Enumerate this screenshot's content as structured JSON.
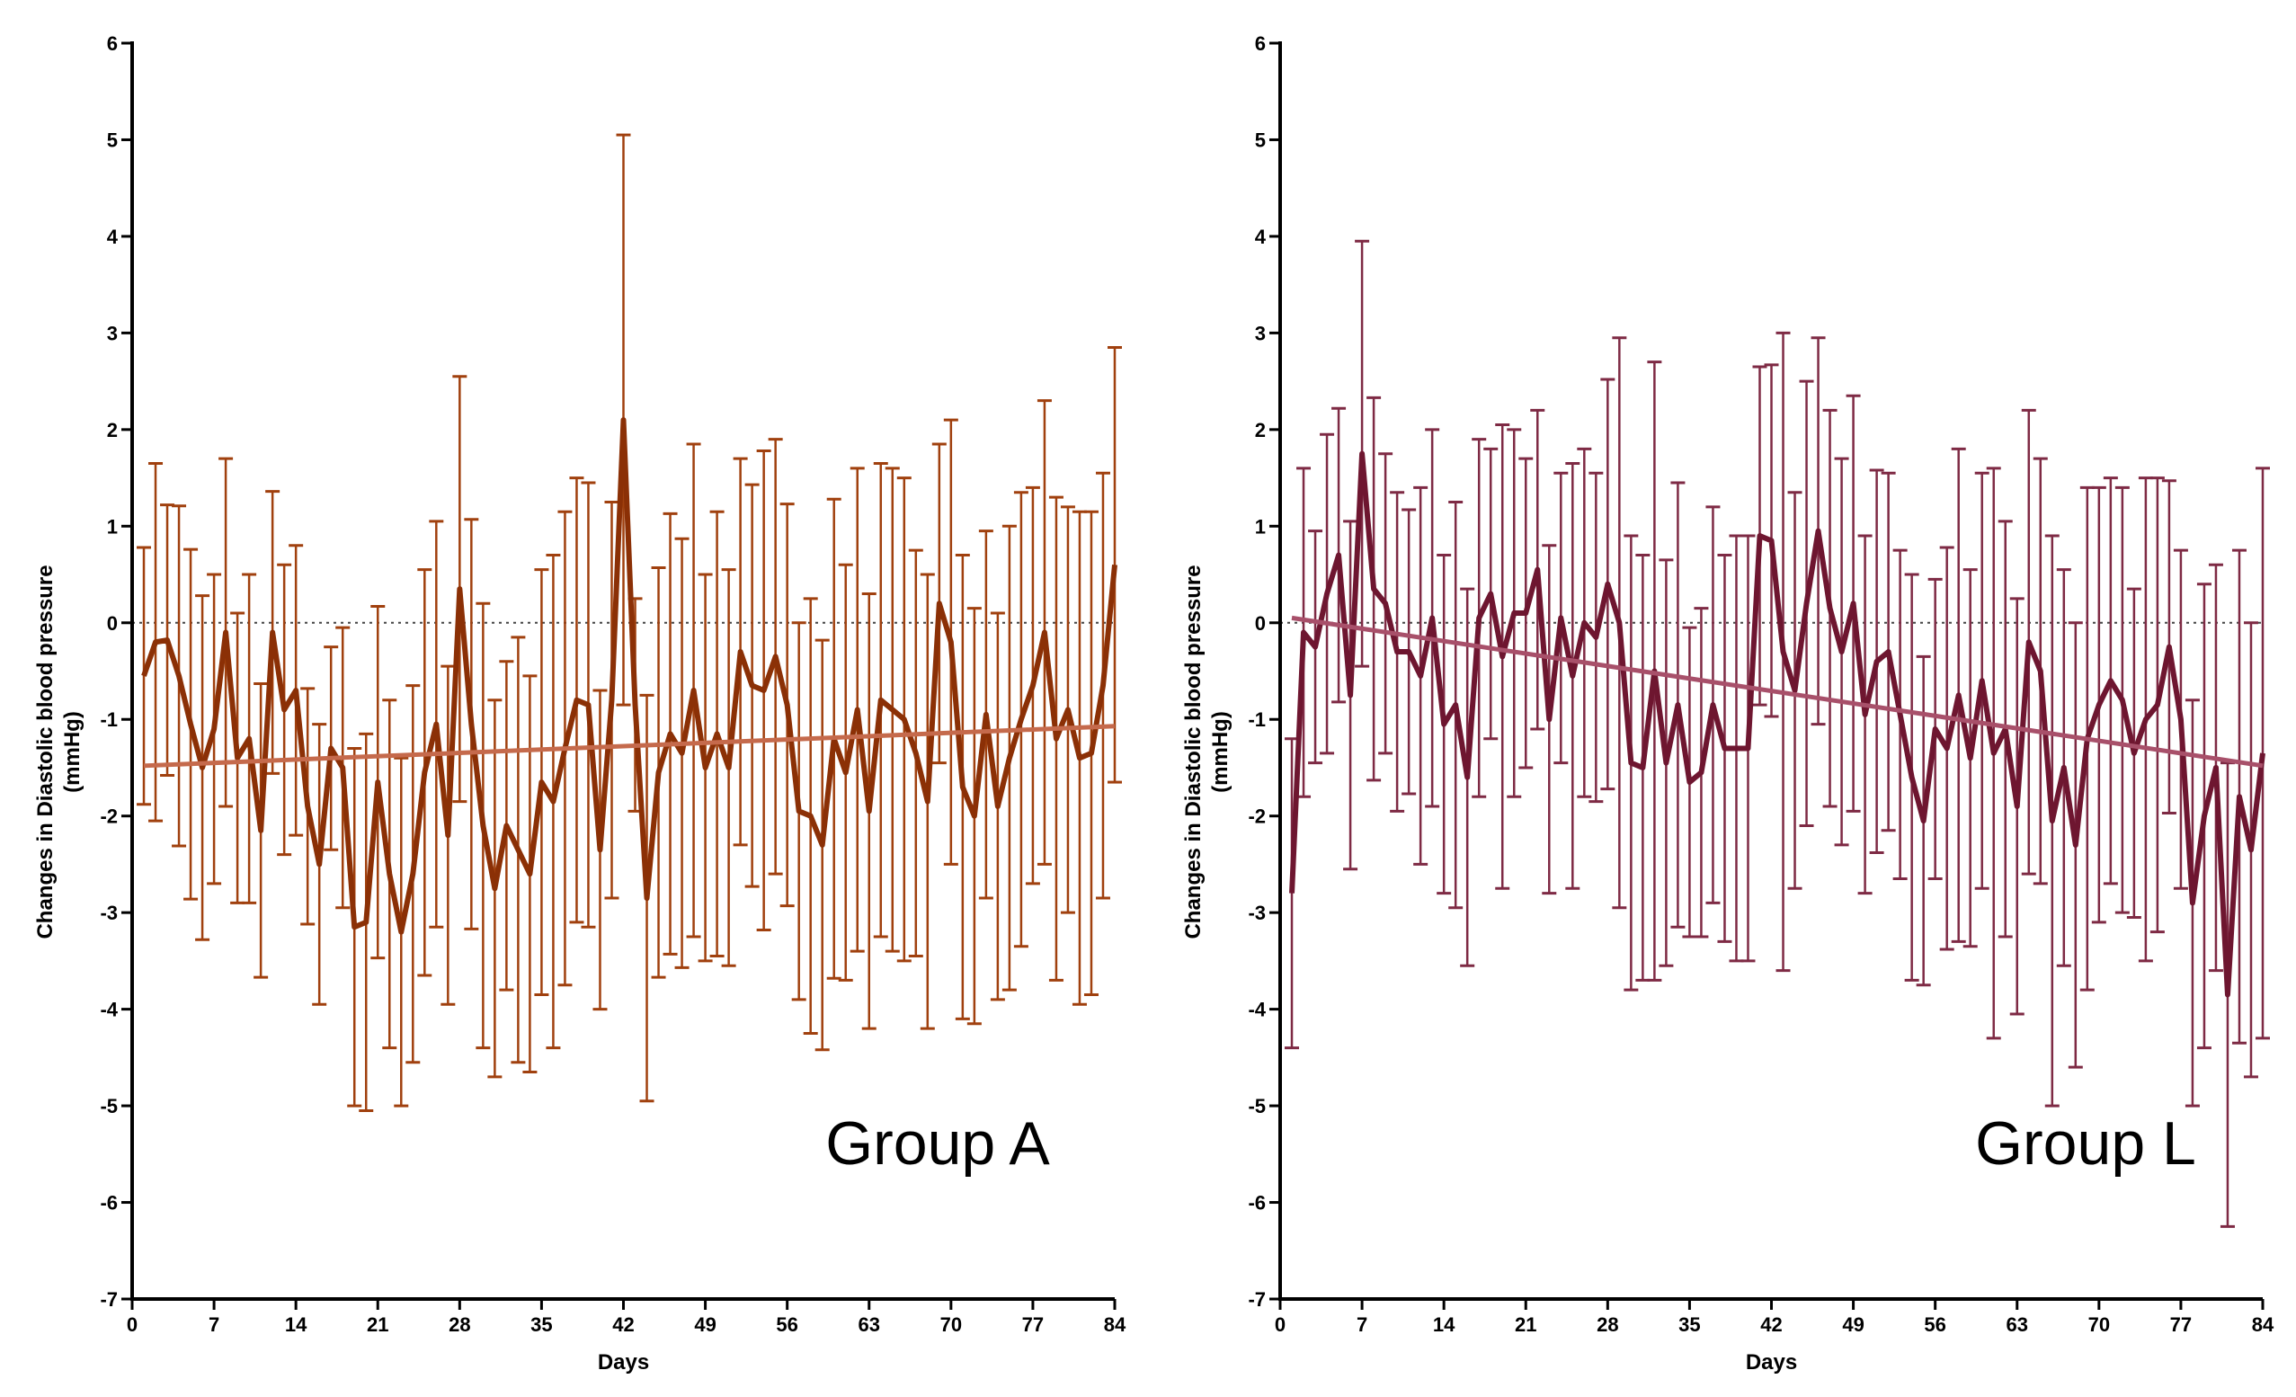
{
  "chart_data": [
    {
      "type": "line",
      "title": "",
      "group_label": "Group A",
      "xlabel": "Days",
      "ylabel_line1": "Changes in Diastolic blood pressure",
      "ylabel_line2": "(mmHg)",
      "xlim": [
        0,
        84
      ],
      "ylim": [
        -7,
        6
      ],
      "x_ticks": [
        0,
        7,
        14,
        21,
        28,
        35,
        42,
        49,
        56,
        63,
        70,
        77,
        84
      ],
      "y_ticks": [
        -7,
        -6,
        -5,
        -4,
        -3,
        -2,
        -1,
        0,
        1,
        2,
        3,
        4,
        5,
        6
      ],
      "colors": {
        "series": "#8B3006",
        "error_bars": "#A0400E",
        "trend": "#C56A4C"
      },
      "reference_line": 0,
      "trend": {
        "start": [
          1,
          -1.48
        ],
        "end": [
          84,
          -1.07
        ]
      },
      "series": [
        {
          "name": "Group A",
          "x": [
            1,
            2,
            3,
            4,
            5,
            6,
            7,
            8,
            9,
            10,
            11,
            12,
            13,
            14,
            15,
            16,
            17,
            18,
            19,
            20,
            21,
            22,
            23,
            24,
            25,
            26,
            27,
            28,
            29,
            30,
            31,
            32,
            33,
            34,
            35,
            36,
            37,
            38,
            39,
            40,
            41,
            42,
            43,
            44,
            45,
            46,
            47,
            48,
            49,
            50,
            51,
            52,
            53,
            54,
            55,
            56,
            57,
            58,
            59,
            60,
            61,
            62,
            63,
            64,
            65,
            66,
            67,
            68,
            69,
            70,
            71,
            72,
            73,
            74,
            75,
            76,
            77,
            78,
            79,
            80,
            81,
            82,
            83,
            84
          ],
          "values": [
            -0.55,
            -0.2,
            -0.18,
            -0.55,
            -1.05,
            -1.5,
            -1.1,
            -0.1,
            -1.4,
            -1.2,
            -2.15,
            -0.1,
            -0.9,
            -0.7,
            -1.9,
            -2.5,
            -1.3,
            -1.5,
            -3.15,
            -3.1,
            -1.65,
            -2.6,
            -3.2,
            -2.6,
            -1.55,
            -1.05,
            -2.2,
            0.35,
            -1.05,
            -2.1,
            -2.75,
            -2.1,
            -2.35,
            -2.6,
            -1.65,
            -1.85,
            -1.3,
            -0.8,
            -0.85,
            -2.35,
            -0.8,
            2.1,
            -0.85,
            -2.85,
            -1.55,
            -1.15,
            -1.35,
            -0.7,
            -1.5,
            -1.15,
            -1.5,
            -0.3,
            -0.65,
            -0.7,
            -0.35,
            -0.85,
            -1.95,
            -2.0,
            -2.3,
            -1.2,
            -1.55,
            -0.9,
            -1.95,
            -0.8,
            -0.9,
            -1.0,
            -1.35,
            -1.85,
            0.2,
            -0.2,
            -1.7,
            -2.0,
            -0.95,
            -1.9,
            -1.4,
            -1.0,
            -0.65,
            -0.1,
            -1.2,
            -0.9,
            -1.4,
            -1.35,
            -0.65,
            0.6
          ],
          "error": [
            1.33,
            1.85,
            1.4,
            1.76,
            1.81,
            1.78,
            1.6,
            1.8,
            1.5,
            1.7,
            1.52,
            1.46,
            1.5,
            1.5,
            1.22,
            1.45,
            1.05,
            1.45,
            1.85,
            1.95,
            1.82,
            1.8,
            1.8,
            1.95,
            2.1,
            2.1,
            1.75,
            2.2,
            2.12,
            2.3,
            1.95,
            1.7,
            2.2,
            2.05,
            2.2,
            2.55,
            2.45,
            2.3,
            2.3,
            1.65,
            2.05,
            2.95,
            1.1,
            2.1,
            2.12,
            2.28,
            2.22,
            2.55,
            2.0,
            2.3,
            2.05,
            2.0,
            2.08,
            2.48,
            2.25,
            2.08,
            1.95,
            2.25,
            2.12,
            2.48,
            2.15,
            2.5,
            2.25,
            2.45,
            2.5,
            2.5,
            2.1,
            2.35,
            1.65,
            2.3,
            2.4,
            2.15,
            1.9,
            2.0,
            2.4,
            2.35,
            2.05,
            2.4,
            2.5,
            2.1,
            2.55,
            2.5,
            2.2,
            2.25
          ]
        }
      ]
    },
    {
      "type": "line",
      "title": "",
      "group_label": "Group L",
      "xlabel": "Days",
      "ylabel_line1": "Changes in Diastolic blood pressure",
      "ylabel_line2": "(mmHg)",
      "xlim": [
        0,
        84
      ],
      "ylim": [
        -7,
        6
      ],
      "x_ticks": [
        0,
        7,
        14,
        21,
        28,
        35,
        42,
        49,
        56,
        63,
        70,
        77,
        84
      ],
      "y_ticks": [
        -7,
        -6,
        -5,
        -4,
        -3,
        -2,
        -1,
        0,
        1,
        2,
        3,
        4,
        5,
        6
      ],
      "colors": {
        "series": "#6E1630",
        "error_bars": "#7E2A44",
        "trend": "#A8506A"
      },
      "reference_line": 0,
      "trend": {
        "start": [
          1,
          0.05
        ],
        "end": [
          84,
          -1.48
        ]
      },
      "series": [
        {
          "name": "Group L",
          "x": [
            1,
            2,
            3,
            4,
            5,
            6,
            7,
            8,
            9,
            10,
            11,
            12,
            13,
            14,
            15,
            16,
            17,
            18,
            19,
            20,
            21,
            22,
            23,
            24,
            25,
            26,
            27,
            28,
            29,
            30,
            31,
            32,
            33,
            34,
            35,
            36,
            37,
            38,
            39,
            40,
            41,
            42,
            43,
            44,
            45,
            46,
            47,
            48,
            49,
            50,
            51,
            52,
            53,
            54,
            55,
            56,
            57,
            58,
            59,
            60,
            61,
            62,
            63,
            64,
            65,
            66,
            67,
            68,
            69,
            70,
            71,
            72,
            73,
            74,
            75,
            76,
            77,
            78,
            79,
            80,
            81,
            82,
            83,
            84
          ],
          "values": [
            -2.8,
            -0.1,
            -0.25,
            0.3,
            0.7,
            -0.75,
            1.75,
            0.35,
            0.2,
            -0.3,
            -0.3,
            -0.55,
            0.05,
            -1.05,
            -0.85,
            -1.6,
            0.05,
            0.3,
            -0.35,
            0.1,
            0.1,
            0.55,
            -1.0,
            0.05,
            -0.55,
            0.0,
            -0.15,
            0.4,
            0.0,
            -1.45,
            -1.5,
            -0.5,
            -1.45,
            -0.85,
            -1.65,
            -1.55,
            -0.85,
            -1.3,
            -1.3,
            -1.3,
            0.9,
            0.85,
            -0.3,
            -0.7,
            0.2,
            0.95,
            0.15,
            -0.3,
            0.2,
            -0.95,
            -0.4,
            -0.3,
            -0.95,
            -1.6,
            -2.05,
            -1.1,
            -1.3,
            -0.75,
            -1.4,
            -0.6,
            -1.35,
            -1.1,
            -1.9,
            -0.2,
            -0.5,
            -2.05,
            -1.5,
            -2.3,
            -1.2,
            -0.85,
            -0.6,
            -0.8,
            -1.35,
            -1.0,
            -0.85,
            -0.25,
            -1.0,
            -2.9,
            -2.0,
            -1.5,
            -3.85,
            -1.8,
            -2.35,
            -1.35
          ],
          "error": [
            1.6,
            1.7,
            1.2,
            1.65,
            1.52,
            1.8,
            2.2,
            1.98,
            1.55,
            1.65,
            1.47,
            1.95,
            1.95,
            1.75,
            2.1,
            1.95,
            1.85,
            1.5,
            2.4,
            1.9,
            1.6,
            1.65,
            1.8,
            1.5,
            2.2,
            1.8,
            1.7,
            2.12,
            2.95,
            2.35,
            2.2,
            3.2,
            2.1,
            2.3,
            1.6,
            1.7,
            2.05,
            2.0,
            2.2,
            2.2,
            1.75,
            1.82,
            3.3,
            2.05,
            2.3,
            2.0,
            2.05,
            2.0,
            2.15,
            1.85,
            1.98,
            1.85,
            1.7,
            2.1,
            1.7,
            1.55,
            2.08,
            2.55,
            1.95,
            2.15,
            2.95,
            2.15,
            2.15,
            2.4,
            2.2,
            2.95,
            2.05,
            2.3,
            2.6,
            2.25,
            2.1,
            2.2,
            1.7,
            2.5,
            2.35,
            1.72,
            1.75,
            2.1,
            2.4,
            2.1,
            2.4,
            2.55,
            2.35,
            2.95
          ]
        }
      ]
    }
  ]
}
